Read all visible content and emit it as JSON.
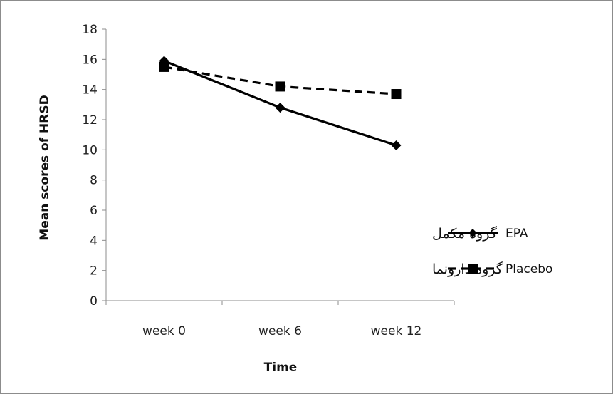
{
  "chart_data": {
    "type": "line",
    "title": "",
    "xlabel": "Time",
    "ylabel": "Mean scores of HRSD",
    "categories": [
      "week 0",
      "week 6",
      "week 12"
    ],
    "ylim": [
      0,
      18
    ],
    "yticks": [
      0,
      2,
      4,
      6,
      8,
      10,
      12,
      14,
      16,
      18
    ],
    "grid": false,
    "legend_position": "bottom-right",
    "series": [
      {
        "name": "EPA",
        "label_rtl": "گروه مکمل",
        "values": [
          15.9,
          12.8,
          10.3
        ],
        "line_style": "solid",
        "marker": "diamond",
        "color": "#000000"
      },
      {
        "name": "Placebo",
        "label_rtl": "گروه دارونما",
        "values": [
          15.5,
          14.2,
          13.7
        ],
        "line_style": "dashed",
        "marker": "square",
        "color": "#000000"
      }
    ]
  }
}
